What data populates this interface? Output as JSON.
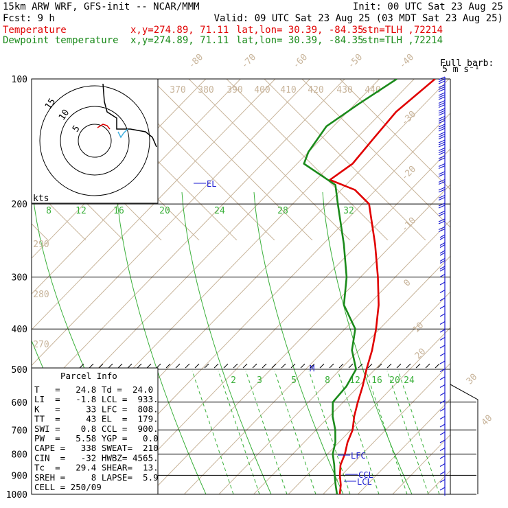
{
  "header": {
    "title": "15km ARW WRF, GFS-init  -- NCAR/MMM",
    "init": "Init: 00 UTC Sat 23 Aug 25",
    "fcst": "Fcst:     9 h",
    "valid": "Valid: 09 UTC Sat 23 Aug 25 (03 MDT Sat 23 Aug 25)",
    "temp_label": "Temperature",
    "temp_xy": "x,y=274.89, 71.11",
    "temp_latlon": "lat,lon= 30.39, -84.35",
    "temp_stn": "stn=TLH ,72214",
    "dew_label": "Dewpoint temperature",
    "dew_xy": "x,y=274.89, 71.11",
    "dew_latlon": "lat,lon= 30.39, -84.35",
    "dew_stn": "stn=TLH ,72214"
  },
  "barb_key": {
    "line1": "Full barb:",
    "line2": "5 m s⁻¹"
  },
  "hodograph": {
    "units": "kts",
    "rings": [
      "5",
      "10",
      "15"
    ]
  },
  "parcel_info": {
    "title": "Parcel Info",
    "rows": [
      "T   =   24.8 Td =  24.0",
      "LI  =   -1.8 LCL =  933.",
      "K   =     33 LFC =  808.",
      "TT  =     43 EL  =  179.",
      "SWI =    0.8 CCL =  900.",
      "PW  =   5.58 YGP =   0.0",
      "CAPE =   338 SWEAT=  210",
      "CIN  =   -32 HWBZ= 4565.",
      "Tc  =   29.4 SHEAR=  13.",
      "SREH =     8 LAPSE=  5.9",
      "CELL = 250/09"
    ]
  },
  "levels": {
    "el": "EL",
    "lfc": "LFC",
    "ccl": "CCL",
    "lcl": "LCL",
    "m": "M"
  },
  "isotherm_labels": [
    "-80",
    "-70",
    "-60",
    "-50",
    "-40",
    "-30",
    "-20",
    "-10",
    "0",
    "10",
    "20",
    "30",
    "40"
  ],
  "theta_labels": [
    "370",
    "380",
    "390",
    "400",
    "410",
    "420",
    "430",
    "440",
    "290",
    "280",
    "270"
  ],
  "thetae_labels": [
    "8",
    "12",
    "16",
    "20",
    "24",
    "28",
    "32"
  ],
  "mixing_ratio_labels": [
    "2",
    "3",
    "5",
    "8",
    "12",
    "16",
    "20",
    "24"
  ],
  "colors": {
    "temperature": "#e00000",
    "dewpoint": "#1a8a1a",
    "isotherm": "#c8b49a",
    "moist": "#3ab03a",
    "wind": "#1a1ad0"
  },
  "chart_data": {
    "type": "line",
    "title": "15km ARW WRF, GFS-init  -- NCAR/MMM",
    "ylabel": "",
    "y_scale": "log-pressure",
    "ylim": [
      1000,
      100
    ],
    "y_ticks": [
      100,
      200,
      300,
      400,
      500,
      600,
      700,
      800,
      900,
      1000
    ],
    "series": [
      {
        "name": "Temperature",
        "points": [
          [
            1000,
            24.8
          ],
          [
            950,
            22.5
          ],
          [
            900,
            19.5
          ],
          [
            850,
            16.8
          ],
          [
            800,
            15
          ],
          [
            750,
            12.5
          ],
          [
            700,
            10.5
          ],
          [
            650,
            7.2
          ],
          [
            600,
            4.2
          ],
          [
            550,
            1.2
          ],
          [
            500,
            -2.5
          ],
          [
            450,
            -6.2
          ],
          [
            400,
            -11
          ],
          [
            350,
            -17
          ],
          [
            300,
            -25
          ],
          [
            250,
            -35
          ],
          [
            200,
            -48
          ],
          [
            185,
            -56
          ],
          [
            175,
            -66
          ],
          [
            160,
            -64
          ],
          [
            140,
            -65
          ],
          [
            120,
            -66
          ],
          [
            100,
            -64
          ]
        ]
      },
      {
        "name": "Dewpoint temperature",
        "points": [
          [
            1000,
            24
          ],
          [
            950,
            21
          ],
          [
            900,
            18
          ],
          [
            850,
            15
          ],
          [
            800,
            11.5
          ],
          [
            750,
            9
          ],
          [
            700,
            5.5
          ],
          [
            650,
            1
          ],
          [
            600,
            -3
          ],
          [
            550,
            -3.5
          ],
          [
            500,
            -5.5
          ],
          [
            450,
            -12
          ],
          [
            400,
            -17
          ],
          [
            350,
            -27
          ],
          [
            300,
            -34
          ],
          [
            250,
            -44
          ],
          [
            200,
            -57
          ],
          [
            180,
            -63
          ],
          [
            160,
            -78
          ],
          [
            150,
            -80
          ],
          [
            130,
            -82
          ],
          [
            115,
            -79
          ],
          [
            100,
            -75
          ]
        ]
      }
    ]
  }
}
